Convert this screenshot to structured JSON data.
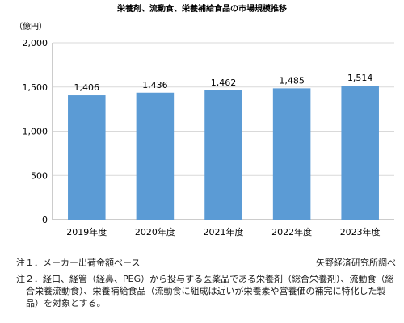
{
  "chart_data": {
    "type": "bar",
    "title": "栄養剤、流動食、栄養補給食品の市場規模推移",
    "unit_label": "（億円）",
    "categories": [
      "2019年度",
      "2020年度",
      "2021年度",
      "2022年度",
      "2023年度"
    ],
    "values": [
      1406,
      1436,
      1462,
      1485,
      1514
    ],
    "value_labels": [
      "1,406",
      "1,436",
      "1,462",
      "1,485",
      "1,514"
    ],
    "ylim": [
      0,
      2000
    ],
    "yticks": [
      0,
      500,
      1000,
      1500,
      2000
    ],
    "ytick_labels": [
      "0",
      "500",
      "1,000",
      "1,500",
      "2,000"
    ],
    "grid": true,
    "bar_color": "#5b9bd5"
  },
  "notes": {
    "note1": "注１．メーカー出荷金額ベース",
    "source": "矢野経済研究所調べ",
    "note2": "注２．経口、経管（経鼻、PEG）から投与する医薬品である栄養剤（総合栄養剤）、流動食（総合栄養流動食）、栄養補給食品（流動食に組成は近いが栄養素や営養価の補完に特化した製品）を対象とする。"
  }
}
